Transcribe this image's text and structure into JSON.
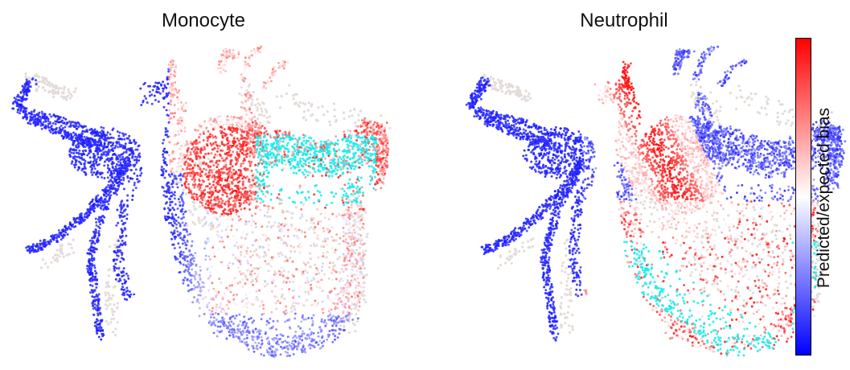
{
  "chart_data": [
    {
      "type": "scatter",
      "title": "Monocyte",
      "highlight_state": "Monocyte",
      "xlabel": "",
      "ylabel": "",
      "axes": "off",
      "grid": false
    },
    {
      "type": "scatter",
      "title": "Neutrophil",
      "highlight_state": "Neutrophil",
      "xlabel": "",
      "ylabel": "",
      "axes": "off",
      "grid": false
    }
  ],
  "colorbar": {
    "label": "Predicted/expected bias",
    "colormap": "bwr",
    "low_color": "#0000ff",
    "mid_color": "#ffffff",
    "high_color": "#ff0000",
    "ticks": "none"
  },
  "colors": {
    "background_cells": "#e3dcd8",
    "target_state_cells": "#14ecec",
    "low_bias": "#0000ff",
    "high_bias": "#ff0000"
  }
}
